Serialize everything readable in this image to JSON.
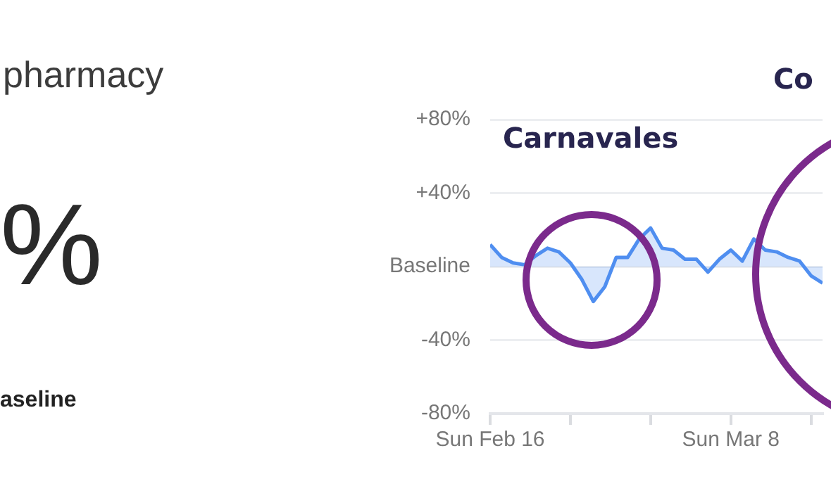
{
  "chart_data": [
    {
      "type": "other",
      "title": "pharmacy",
      "annotations": [
        "%",
        "aseline"
      ]
    },
    {
      "type": "area",
      "x": [
        "--02-16",
        "--02-17",
        "--02-18",
        "--02-19",
        "--02-20",
        "--02-21",
        "--02-22",
        "--02-23",
        "--02-24",
        "--02-25",
        "--02-26",
        "--02-27",
        "--02-28",
        "--02-29",
        "--03-01",
        "--03-02",
        "--03-03",
        "--03-04",
        "--03-05",
        "--03-06",
        "--03-07",
        "--03-08",
        "--03-09",
        "--03-10",
        "--03-11",
        "--03-12",
        "--03-13",
        "--03-14",
        "--03-15",
        "--03-16"
      ],
      "series": [
        {
          "color": "#4f8ef0",
          "values": [
            12,
            5,
            2,
            1,
            6,
            10,
            8,
            2,
            -7,
            -19,
            -11,
            5,
            5,
            15,
            21,
            10,
            9,
            4,
            4,
            -3,
            4,
            9,
            3,
            15,
            9,
            8,
            5,
            3,
            -5,
            -9
          ]
        }
      ],
      "xlim": [
        "--02-16",
        "--03-16"
      ],
      "xticks": [
        {
          "value": "--02-16",
          "label": "Sun Feb 16"
        },
        {
          "value": "--02-23",
          "label": null
        },
        {
          "value": "--03-01",
          "label": null
        },
        {
          "value": "--03-08",
          "label": "Sun Mar 8"
        },
        {
          "value": "--03-15",
          "label": null
        }
      ],
      "ylim": [
        -80,
        80
      ],
      "yticks": [
        {
          "value": -80,
          "label": "-80%"
        },
        {
          "value": -40,
          "label": "-40%"
        },
        {
          "value": 0,
          "label": "Baseline"
        },
        {
          "value": 40,
          "label": "+40%"
        },
        {
          "value": 80,
          "label": "+80%"
        }
      ],
      "grid": "y",
      "legend": false,
      "annotations": [
        "Carnavales",
        "Co"
      ]
    }
  ]
}
